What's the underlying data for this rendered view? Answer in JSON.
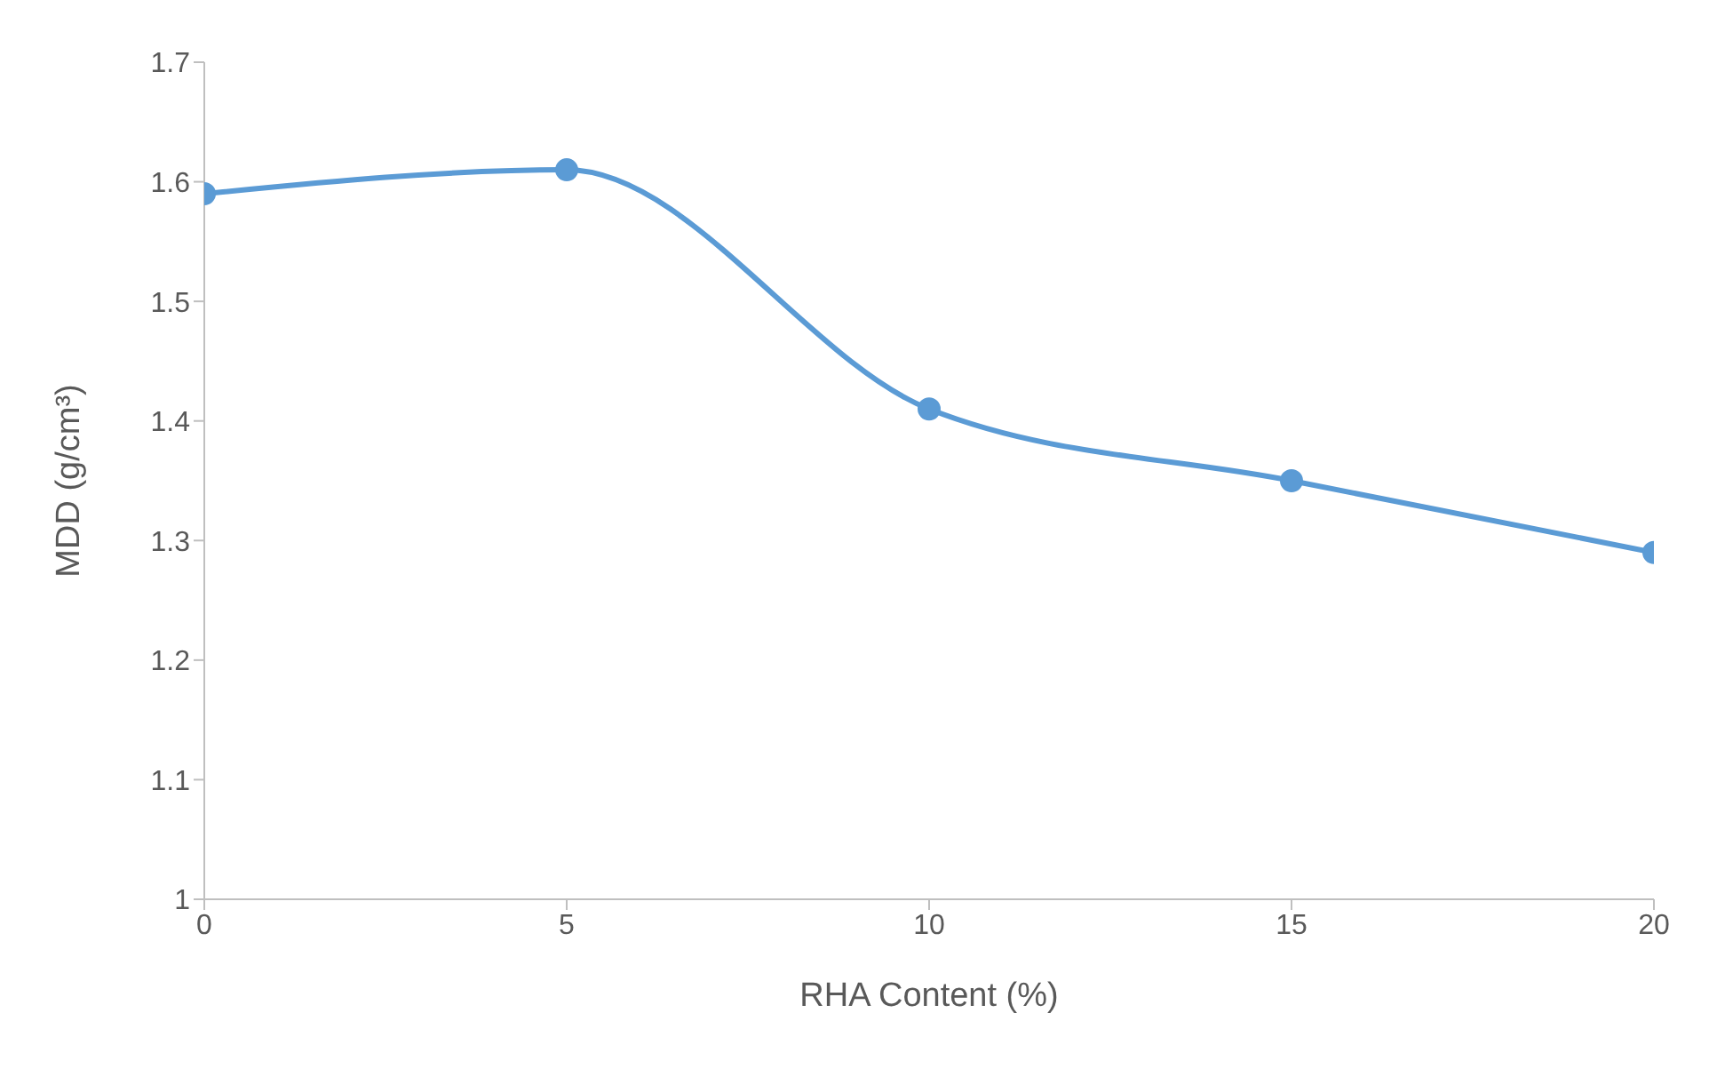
{
  "chart_data": {
    "type": "line",
    "xlabel": "RHA Content (%)",
    "ylabel": "MDD (g/cm³)",
    "x": [
      0,
      5,
      10,
      15,
      20
    ],
    "series": [
      {
        "color": "#5b9bd5",
        "values": [
          1.59,
          1.61,
          1.41,
          1.35,
          1.29
        ]
      }
    ],
    "xlim": [
      0,
      20
    ],
    "xticks": [
      0,
      5,
      10,
      15,
      20
    ],
    "ylim": [
      1,
      1.7
    ],
    "yticks": [
      1,
      1.1,
      1.2,
      1.3,
      1.4,
      1.5,
      1.6,
      1.7
    ],
    "marker": "circle",
    "line_style": "solid"
  }
}
